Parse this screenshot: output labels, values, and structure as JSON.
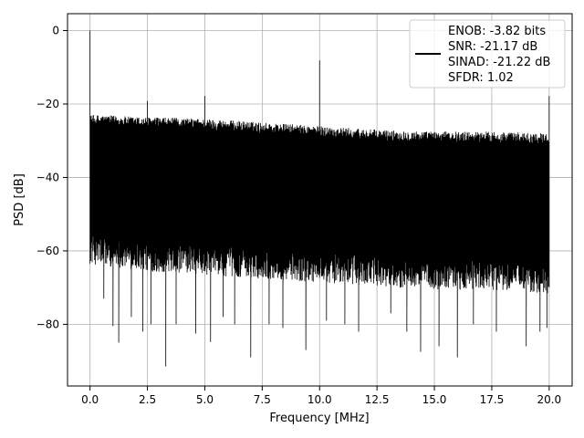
{
  "chart_data": {
    "type": "line",
    "title": "",
    "xlabel": "Frequency [MHz]",
    "ylabel": "PSD [dB]",
    "xlim": [
      -0.98,
      21.0
    ],
    "ylim": [
      -96.8,
      4.6
    ],
    "xticks": [
      0.0,
      2.5,
      5.0,
      7.5,
      10.0,
      12.5,
      15.0,
      17.5,
      20.0
    ],
    "xtick_labels": [
      "0.0",
      "2.5",
      "5.0",
      "7.5",
      "10.0",
      "12.5",
      "15.0",
      "17.5",
      "20.0"
    ],
    "yticks": [
      0,
      -20,
      -40,
      -60,
      -80
    ],
    "ytick_labels": [
      "0",
      "−20",
      "−40",
      "−60",
      "−80"
    ],
    "grid": true,
    "legend_position": "top-right",
    "series": [
      {
        "name": "",
        "color": "#000000",
        "x_range": [
          0.0,
          20.0
        ],
        "noise_floor_top": [
          [
            0.0,
            -24
          ],
          [
            0.5,
            -24
          ],
          [
            2.0,
            -24.5
          ],
          [
            5.0,
            -25
          ],
          [
            7.5,
            -26
          ],
          [
            10.0,
            -27
          ],
          [
            12.5,
            -28
          ],
          [
            15.0,
            -28.5
          ],
          [
            17.5,
            -28.5
          ],
          [
            20.0,
            -29
          ]
        ],
        "noise_floor_bottom": [
          [
            0.0,
            -62
          ],
          [
            2.5,
            -64
          ],
          [
            5.0,
            -65
          ],
          [
            7.5,
            -66
          ],
          [
            10.0,
            -67
          ],
          [
            12.5,
            -68
          ],
          [
            15.0,
            -69
          ],
          [
            17.5,
            -69
          ],
          [
            20.0,
            -70
          ]
        ],
        "peaks": [
          [
            0.0,
            0.0
          ],
          [
            2.5,
            -19.2
          ],
          [
            5.0,
            -17.8
          ],
          [
            10.0,
            -8.1
          ],
          [
            20.0,
            -17.8
          ]
        ],
        "deep_nulls": [
          [
            0.6,
            -73
          ],
          [
            1.0,
            -80.5
          ],
          [
            1.25,
            -85
          ],
          [
            1.8,
            -78
          ],
          [
            2.3,
            -82
          ],
          [
            2.65,
            -80
          ],
          [
            3.3,
            -91.5
          ],
          [
            3.75,
            -80
          ],
          [
            4.6,
            -82.5
          ],
          [
            5.25,
            -84.8
          ],
          [
            5.8,
            -78
          ],
          [
            6.3,
            -80
          ],
          [
            7.0,
            -89
          ],
          [
            7.8,
            -80
          ],
          [
            8.4,
            -81
          ],
          [
            9.4,
            -87
          ],
          [
            10.3,
            -79
          ],
          [
            11.1,
            -80
          ],
          [
            11.7,
            -82
          ],
          [
            13.1,
            -77
          ],
          [
            13.8,
            -82
          ],
          [
            14.4,
            -87.5
          ],
          [
            15.2,
            -86
          ],
          [
            16.0,
            -89
          ],
          [
            16.7,
            -80
          ],
          [
            17.7,
            -82
          ],
          [
            19.0,
            -86
          ],
          [
            19.6,
            -82
          ],
          [
            19.9,
            -81
          ]
        ],
        "legend_text": [
          "ENOB: -3.82 bits",
          "SNR: -21.17 dB",
          "SINAD: -21.22 dB",
          "SFDR: 1.02"
        ]
      }
    ]
  }
}
